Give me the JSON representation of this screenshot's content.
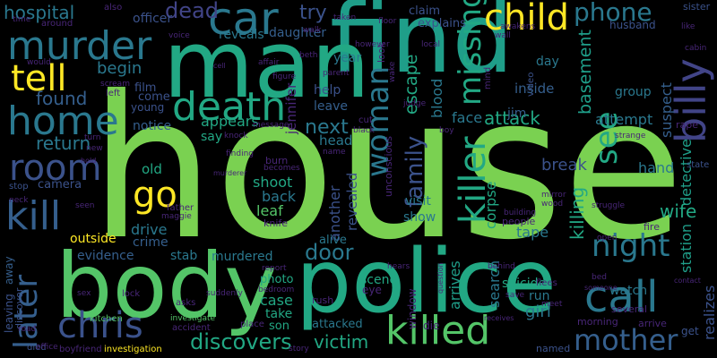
{
  "background": "#000000",
  "palette": {
    "lime": "#7ad151",
    "green": "#22a884",
    "teal": "#2a788e",
    "blue": "#414487",
    "purple": "#440154",
    "yellow": "#fde725",
    "light_green": "#54c568",
    "mid_teal": "#1f9e89",
    "slate": "#355f8d",
    "indigo": "#3b528b",
    "dark_indigo": "#482677"
  },
  "words": {
    "house": "house",
    "find": "find",
    "man": "man",
    "body": "body",
    "police": "police",
    "murder": "murder",
    "car": "car",
    "child": "child",
    "tell": "tell",
    "home": "home",
    "death": "death",
    "room": "room",
    "kill": "kill",
    "go": "go",
    "killer": "killer",
    "woman": "woman",
    "later": "later",
    "chris": "chris",
    "killed": "killed",
    "missing": "missing",
    "billy": "billy",
    "call": "call",
    "mother": "mother",
    "night": "night",
    "see": "see",
    "found": "found",
    "return": "return",
    "dead": "dead",
    "phone": "phone",
    "hospital": "hospital",
    "try": "try",
    "attack": "attack",
    "family": "family",
    "next": "next",
    "door": "door",
    "discovers": "discovers",
    "victim": "victim",
    "wife": "wife",
    "corpse": "corpse",
    "escape": "escape",
    "begin": "begin",
    "reveals": "reveals",
    "daughter": "daughter",
    "attempt": "attempt",
    "basement": "basement",
    "suspect": "suspect",
    "hand": "hand",
    "break": "break",
    "killing": "killing",
    "face": "face",
    "blood": "blood",
    "inside": "inside",
    "jim": "jim",
    "leave": "leave",
    "help": "help",
    "year": "year",
    "day": "day",
    "group": "group",
    "station": "station",
    "detective": "detective",
    "officer": "officer",
    "claim": "claim",
    "appears": "appears",
    "say": "say",
    "notice": "notice",
    "old": "old",
    "shoot": "shoot",
    "back": "back",
    "leaf": "leaf",
    "apartment": "apartment",
    "drive": "drive",
    "crime": "crime",
    "evidence": "evidence",
    "stab": "stab",
    "murdered": "murdered",
    "outside": "outside",
    "camera": "camera",
    "photo": "photo",
    "case": "case",
    "take": "take",
    "son": "son",
    "scene": "scene",
    "suicide": "suicide",
    "run": "run",
    "girl": "girl",
    "watch": "watch",
    "attacked": "attacked",
    "alive": "alive",
    "another": "another",
    "revealed": "revealed",
    "visit": "visit",
    "show": "show",
    "tape": "tape",
    "search": "search",
    "arrives": "arrives",
    "film": "film",
    "come": "come",
    "young": "young",
    "head": "head",
    "jennifer": "jennifer",
    "husband": "husband",
    "sister": "sister",
    "state": "state",
    "strange": "strange",
    "rape": "rape",
    "realizes": "realizes",
    "get": "get",
    "several": "several",
    "morning": "morning",
    "arrive": "arrive",
    "named": "named",
    "die": "die",
    "rush": "rush",
    "eye": "eye",
    "flees": "flees",
    "meet": "meet",
    "receives": "receives",
    "window": "window",
    "hears": "hears",
    "behind": "behind",
    "report": "report",
    "bedroom": "bedroom",
    "place": "place",
    "story": "story",
    "investigation": "investigation",
    "boyfriend": "boyfriend",
    "died": "died",
    "road": "road",
    "accident": "accident",
    "investigate": "investigate",
    "kitchen": "kitchen",
    "lock": "lock",
    "asks": "asks",
    "suddenly": "suddenly",
    "leaving": "leaving",
    "away": "away",
    "discover": "discover",
    "office": "office",
    "sex": "sex",
    "neck": "neck",
    "stop": "stop",
    "seen": "seen",
    "father": "father",
    "maggie": "maggie",
    "knife": "knife",
    "burn": "burn",
    "becomes": "becomes",
    "murderer": "murderer",
    "finding": "finding",
    "knock": "knock",
    "message": "message",
    "black": "black",
    "cut": "cut",
    "boy": "boy",
    "judge": "judge",
    "name": "name",
    "unconscious": "unconscious",
    "building": "building",
    "mirror": "mirror",
    "struggle": "struggle",
    "wood": "wood",
    "fire": "fire",
    "open": "open",
    "someone": "someone",
    "contact": "contact",
    "bed": "bed",
    "save": "save",
    "people": "people",
    "video": "video",
    "cabin": "cabin",
    "like": "like",
    "awakens": "awakens",
    "wall": "wall",
    "local": "local",
    "explains": "explains",
    "taken": "taken",
    "floor": "floor",
    "walk": "walk",
    "figure": "figure",
    "beth": "beth",
    "however": "however",
    "parent": "parent",
    "affair": "affair",
    "voice": "voice",
    "scream": "scream",
    "cell": "cell",
    "left": "left",
    "turn": "turn",
    "new": "new",
    "would": "would",
    "time": "time",
    "around": "around",
    "also": "also",
    "wake": "wake",
    "question": "question",
    "look": "look",
    "mind": "mind",
    "hold": "hold"
  }
}
